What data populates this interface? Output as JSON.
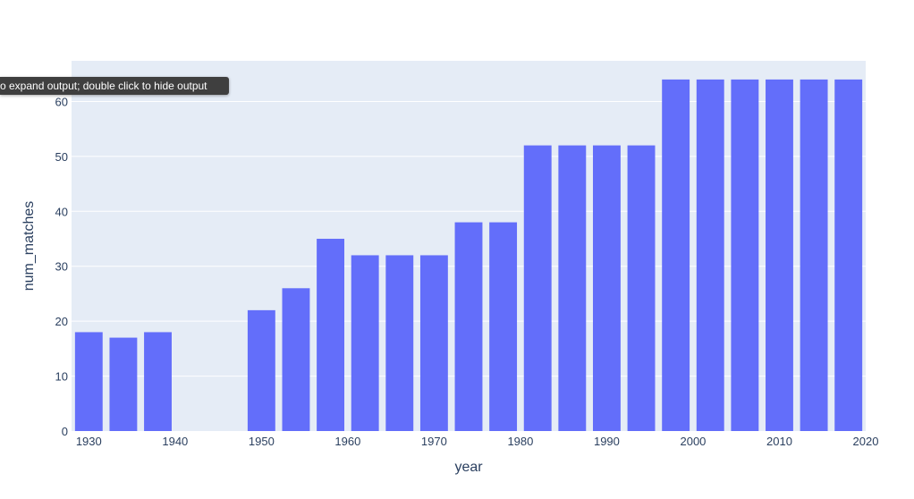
{
  "tooltip": {
    "text": "o expand output; double click to hide output"
  },
  "chart_data": {
    "type": "bar",
    "xlabel": "year",
    "ylabel": "num_matches",
    "x": [
      1930,
      1934,
      1938,
      1950,
      1954,
      1958,
      1962,
      1966,
      1970,
      1974,
      1978,
      1982,
      1986,
      1990,
      1994,
      1998,
      2002,
      2006,
      2010,
      2014,
      2018
    ],
    "values": [
      18,
      17,
      18,
      22,
      26,
      35,
      32,
      32,
      32,
      38,
      38,
      52,
      52,
      52,
      52,
      64,
      64,
      64,
      64,
      64,
      64
    ],
    "xlim": [
      1928,
      2020
    ],
    "ylim": [
      0,
      67.4
    ],
    "xticks": [
      1930,
      1940,
      1950,
      1960,
      1970,
      1980,
      1990,
      2000,
      2010,
      2020
    ],
    "yticks": [
      0,
      10,
      20,
      30,
      40,
      50,
      60
    ],
    "bar_color": "#636efa",
    "plot_background": "#e5ecf6",
    "grid": true
  }
}
